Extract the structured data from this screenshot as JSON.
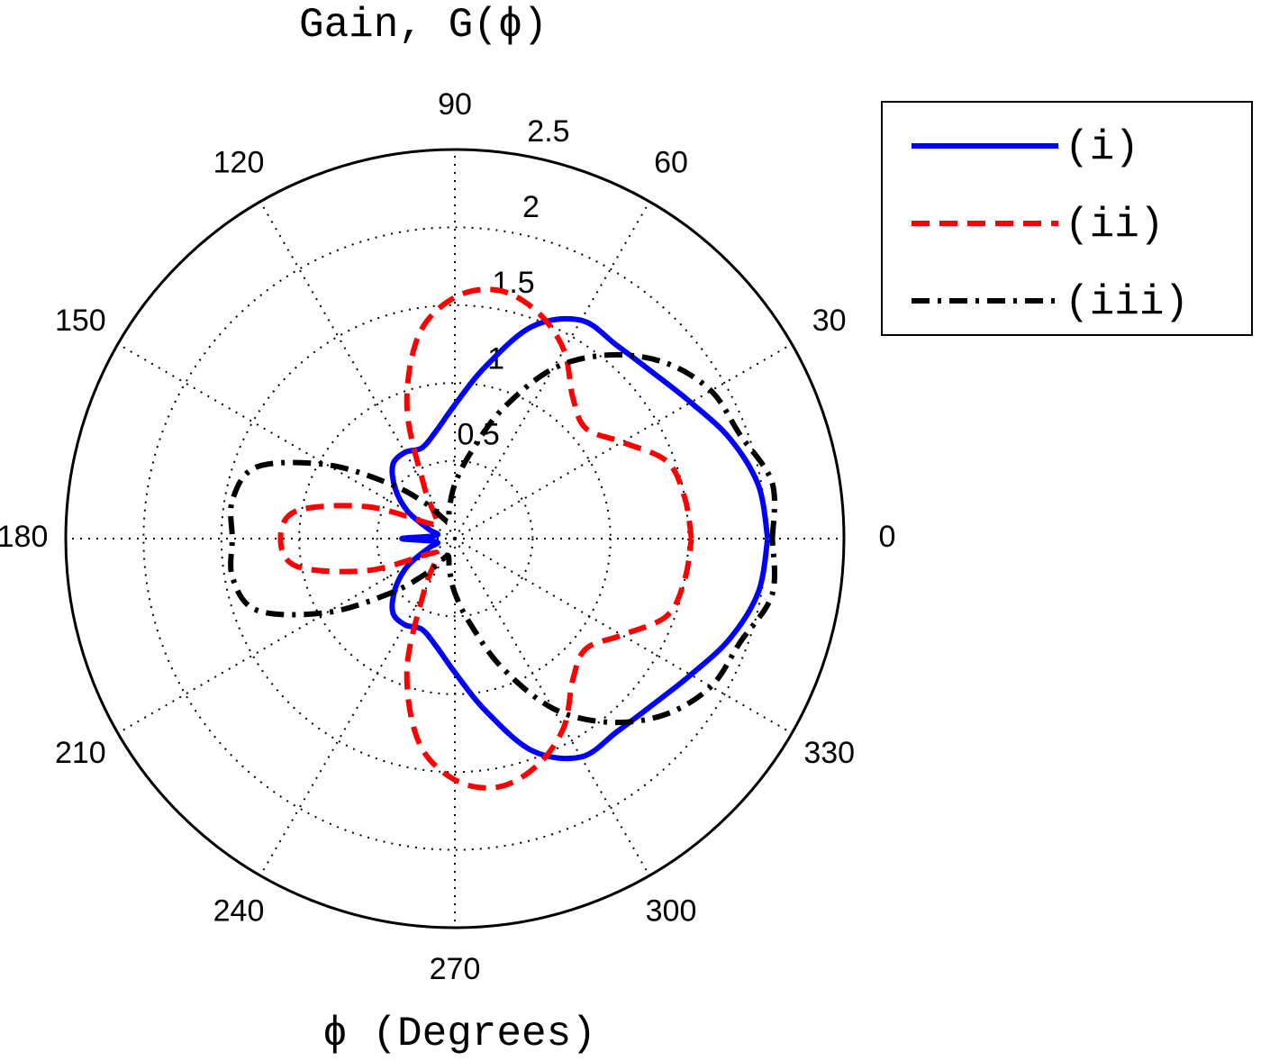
{
  "chart_data": {
    "type": "polar",
    "title": "Gain, G(ϕ)",
    "x_label": "ϕ (Degrees)",
    "x": [
      0,
      10,
      20,
      30,
      40,
      50,
      60,
      70,
      80,
      90,
      100,
      110,
      120,
      130,
      140,
      150,
      160,
      170,
      180,
      190,
      200,
      210,
      220,
      230,
      240,
      250,
      260,
      270,
      280,
      290,
      300,
      310,
      320,
      330,
      340,
      350,
      360
    ],
    "series": [
      {
        "name": "(i)",
        "color": "#0000ff",
        "style": "solid",
        "values": [
          2.01,
          1.98,
          1.88,
          1.75,
          1.66,
          1.62,
          1.62,
          1.45,
          1.12,
          0.86,
          0.7,
          0.62,
          0.64,
          0.62,
          0.5,
          0.35,
          0.18,
          0.12,
          0.34,
          0.12,
          0.18,
          0.35,
          0.5,
          0.62,
          0.64,
          0.62,
          0.7,
          0.86,
          1.12,
          1.45,
          1.62,
          1.62,
          1.66,
          1.75,
          1.88,
          1.98,
          2.01
        ]
      },
      {
        "name": "(ii)",
        "color": "#ff0000",
        "style": "dashed",
        "values": [
          1.52,
          1.5,
          1.45,
          1.24,
          1.1,
          1.18,
          1.4,
          1.55,
          1.62,
          1.55,
          1.33,
          0.9,
          0.4,
          0.2,
          0.15,
          0.2,
          0.6,
          1.03,
          1.12,
          1.03,
          0.6,
          0.2,
          0.15,
          0.2,
          0.4,
          0.9,
          1.33,
          1.55,
          1.62,
          1.55,
          1.4,
          1.18,
          1.1,
          1.24,
          1.45,
          1.5,
          1.52
        ]
      },
      {
        "name": "(iii)",
        "color": "#000000",
        "style": "dashdot",
        "values": [
          2.04,
          2.07,
          1.95,
          1.9,
          1.76,
          1.54,
          1.26,
          0.88,
          0.55,
          0.35,
          0.2,
          0.12,
          0.15,
          0.3,
          0.55,
          0.95,
          1.35,
          1.45,
          1.43,
          1.45,
          1.35,
          0.95,
          0.55,
          0.3,
          0.15,
          0.12,
          0.2,
          0.35,
          0.55,
          0.88,
          1.26,
          1.54,
          1.76,
          1.9,
          1.95,
          2.07,
          2.04
        ]
      }
    ],
    "rlim": [
      0,
      2.5
    ],
    "rticks": [
      0.5,
      1,
      1.5,
      2,
      2.5
    ],
    "thetaticks": [
      0,
      30,
      60,
      90,
      120,
      150,
      180,
      210,
      240,
      270,
      300,
      330
    ],
    "grid": true,
    "legend": "upper right"
  }
}
